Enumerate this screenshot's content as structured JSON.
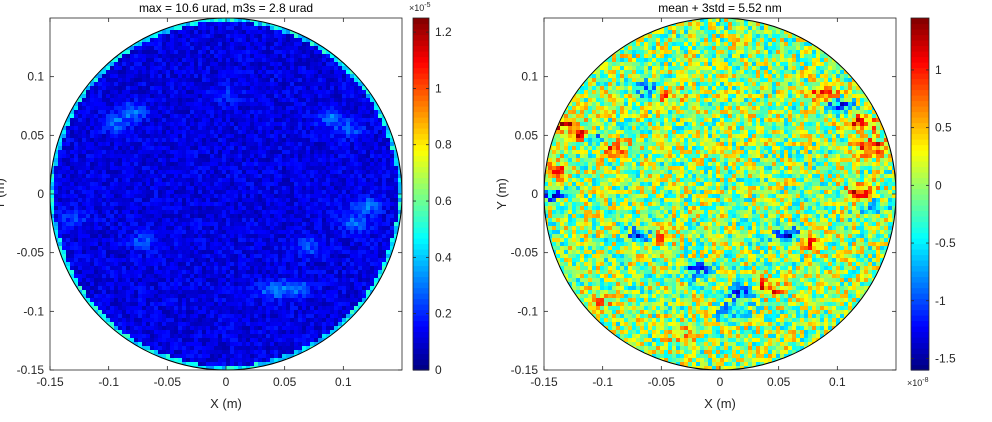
{
  "chart_data": [
    {
      "type": "heatmap",
      "title": "max = 10.6 urad, m3s = 2.8 urad",
      "xlabel": "X (m)",
      "ylabel": "Y (m)",
      "xlim": [
        -0.15,
        0.15
      ],
      "ylim": [
        -0.15,
        0.15
      ],
      "xticks": [
        -0.15,
        -0.1,
        -0.05,
        0,
        0.05,
        0.1
      ],
      "xtick_labels": [
        "-0.15",
        "-0.1",
        "-0.05",
        "0",
        "0.05",
        "0.1"
      ],
      "yticks": [
        -0.15,
        -0.1,
        -0.05,
        0,
        0.05,
        0.1
      ],
      "ytick_labels": [
        "-0.15",
        "-0.1",
        "-0.05",
        "0",
        "0.05",
        "0.1"
      ],
      "aperture": "circular",
      "colormap": "jet",
      "clim": [
        0,
        1.25
      ],
      "colorbar_ticks": [
        0,
        0.2,
        0.4,
        0.6,
        0.8,
        1,
        1.2
      ],
      "colorbar_tick_labels": [
        "0",
        "0.2",
        "0.4",
        "0.6",
        "0.8",
        "1",
        "1.2"
      ],
      "colorbar_exponent": "×10",
      "colorbar_exponent_power": "-5",
      "background_level": 0.12,
      "features": [
        {
          "x": -0.095,
          "y": 0.06,
          "value": 0.28
        },
        {
          "x": -0.08,
          "y": 0.07,
          "value": 0.3
        },
        {
          "x": 0.09,
          "y": 0.065,
          "value": 0.28
        },
        {
          "x": 0.105,
          "y": 0.055,
          "value": 0.26
        },
        {
          "x": 0.12,
          "y": -0.01,
          "value": 0.3
        },
        {
          "x": 0.11,
          "y": -0.025,
          "value": 0.28
        },
        {
          "x": 0.06,
          "y": -0.08,
          "value": 0.32
        },
        {
          "x": 0.04,
          "y": -0.082,
          "value": 0.3
        },
        {
          "x": -0.07,
          "y": -0.04,
          "value": 0.26
        },
        {
          "x": 0.07,
          "y": -0.045,
          "value": 0.26
        },
        {
          "x": -0.13,
          "y": -0.02,
          "value": 0.22
        },
        {
          "x": 0.0,
          "y": 0.085,
          "value": 0.2
        }
      ],
      "edge_level": 0.55
    },
    {
      "type": "heatmap",
      "title": "mean + 3std = 5.52 nm",
      "xlabel": "X (m)",
      "ylabel": "Y (m)",
      "xlim": [
        -0.15,
        0.15
      ],
      "ylim": [
        -0.15,
        0.15
      ],
      "xticks": [
        -0.15,
        -0.1,
        -0.05,
        0,
        0.05,
        0.1
      ],
      "xtick_labels": [
        "-0.15",
        "-0.1",
        "-0.05",
        "0",
        "0.05",
        "0.1"
      ],
      "yticks": [
        -0.15,
        -0.1,
        -0.05,
        0,
        0.05,
        0.1
      ],
      "ytick_labels": [
        "-0.15",
        "-0.1",
        "-0.05",
        "0",
        "0.05",
        "0.1"
      ],
      "aperture": "circular",
      "colormap": "jet",
      "clim": [
        -1.6,
        1.45
      ],
      "colorbar_ticks": [
        -1.5,
        -1,
        -0.5,
        0,
        0.5,
        1
      ],
      "colorbar_tick_labels": [
        "-1.5",
        "-1",
        "-0.5",
        "0",
        "0.5",
        "1"
      ],
      "colorbar_exponent": "×10",
      "colorbar_exponent_power": "-8",
      "background_level": 0.0,
      "features": [
        {
          "x": -0.135,
          "y": 0.06,
          "value": 1.0
        },
        {
          "x": -0.12,
          "y": 0.05,
          "value": 0.9
        },
        {
          "x": -0.105,
          "y": 0.045,
          "value": -0.9
        },
        {
          "x": -0.09,
          "y": 0.04,
          "value": 0.8
        },
        {
          "x": -0.14,
          "y": 0.02,
          "value": 0.8
        },
        {
          "x": -0.145,
          "y": 0.0,
          "value": -1.0
        },
        {
          "x": -0.06,
          "y": 0.09,
          "value": -1.0
        },
        {
          "x": -0.045,
          "y": 0.085,
          "value": 0.7
        },
        {
          "x": 0.09,
          "y": 0.085,
          "value": 1.0
        },
        {
          "x": 0.1,
          "y": 0.075,
          "value": -1.1
        },
        {
          "x": 0.12,
          "y": 0.06,
          "value": 1.1
        },
        {
          "x": 0.13,
          "y": 0.04,
          "value": 1.0
        },
        {
          "x": 0.12,
          "y": 0.0,
          "value": 1.2
        },
        {
          "x": 0.13,
          "y": -0.01,
          "value": -0.8
        },
        {
          "x": -0.065,
          "y": -0.035,
          "value": -1.3
        },
        {
          "x": -0.055,
          "y": -0.035,
          "value": 1.0
        },
        {
          "x": 0.06,
          "y": -0.035,
          "value": -1.3
        },
        {
          "x": 0.075,
          "y": -0.04,
          "value": 1.0
        },
        {
          "x": 0.02,
          "y": -0.085,
          "value": -1.0
        },
        {
          "x": 0.04,
          "y": -0.08,
          "value": 1.0
        },
        {
          "x": -0.02,
          "y": -0.065,
          "value": -0.9
        },
        {
          "x": 0.01,
          "y": -0.1,
          "value": -0.8
        },
        {
          "x": -0.03,
          "y": -0.12,
          "value": 0.6
        },
        {
          "x": -0.1,
          "y": -0.09,
          "value": 0.5
        }
      ],
      "edge_level": 0.0
    }
  ]
}
